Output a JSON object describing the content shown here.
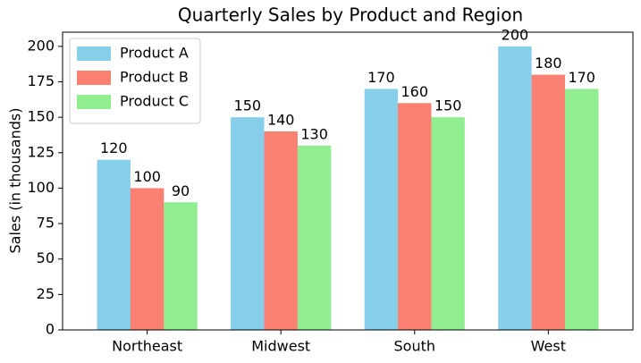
{
  "chart_data": {
    "type": "bar",
    "title": "Quarterly Sales by Product and Region",
    "y_label": "Sales (in thousands)",
    "categories": [
      "Northeast",
      "Midwest",
      "South",
      "West"
    ],
    "series": [
      {
        "name": "Product A",
        "color": "#87ceeb",
        "values": [
          120,
          150,
          170,
          200
        ]
      },
      {
        "name": "Product B",
        "color": "#fa8072",
        "values": [
          100,
          140,
          160,
          180
        ]
      },
      {
        "name": "Product C",
        "color": "#90ee90",
        "values": [
          90,
          130,
          150,
          170
        ]
      }
    ],
    "ylim": [
      0,
      210
    ],
    "yticks": [
      0,
      25,
      50,
      75,
      100,
      125,
      150,
      175,
      200
    ],
    "grid": false,
    "legend": "upper-left"
  }
}
